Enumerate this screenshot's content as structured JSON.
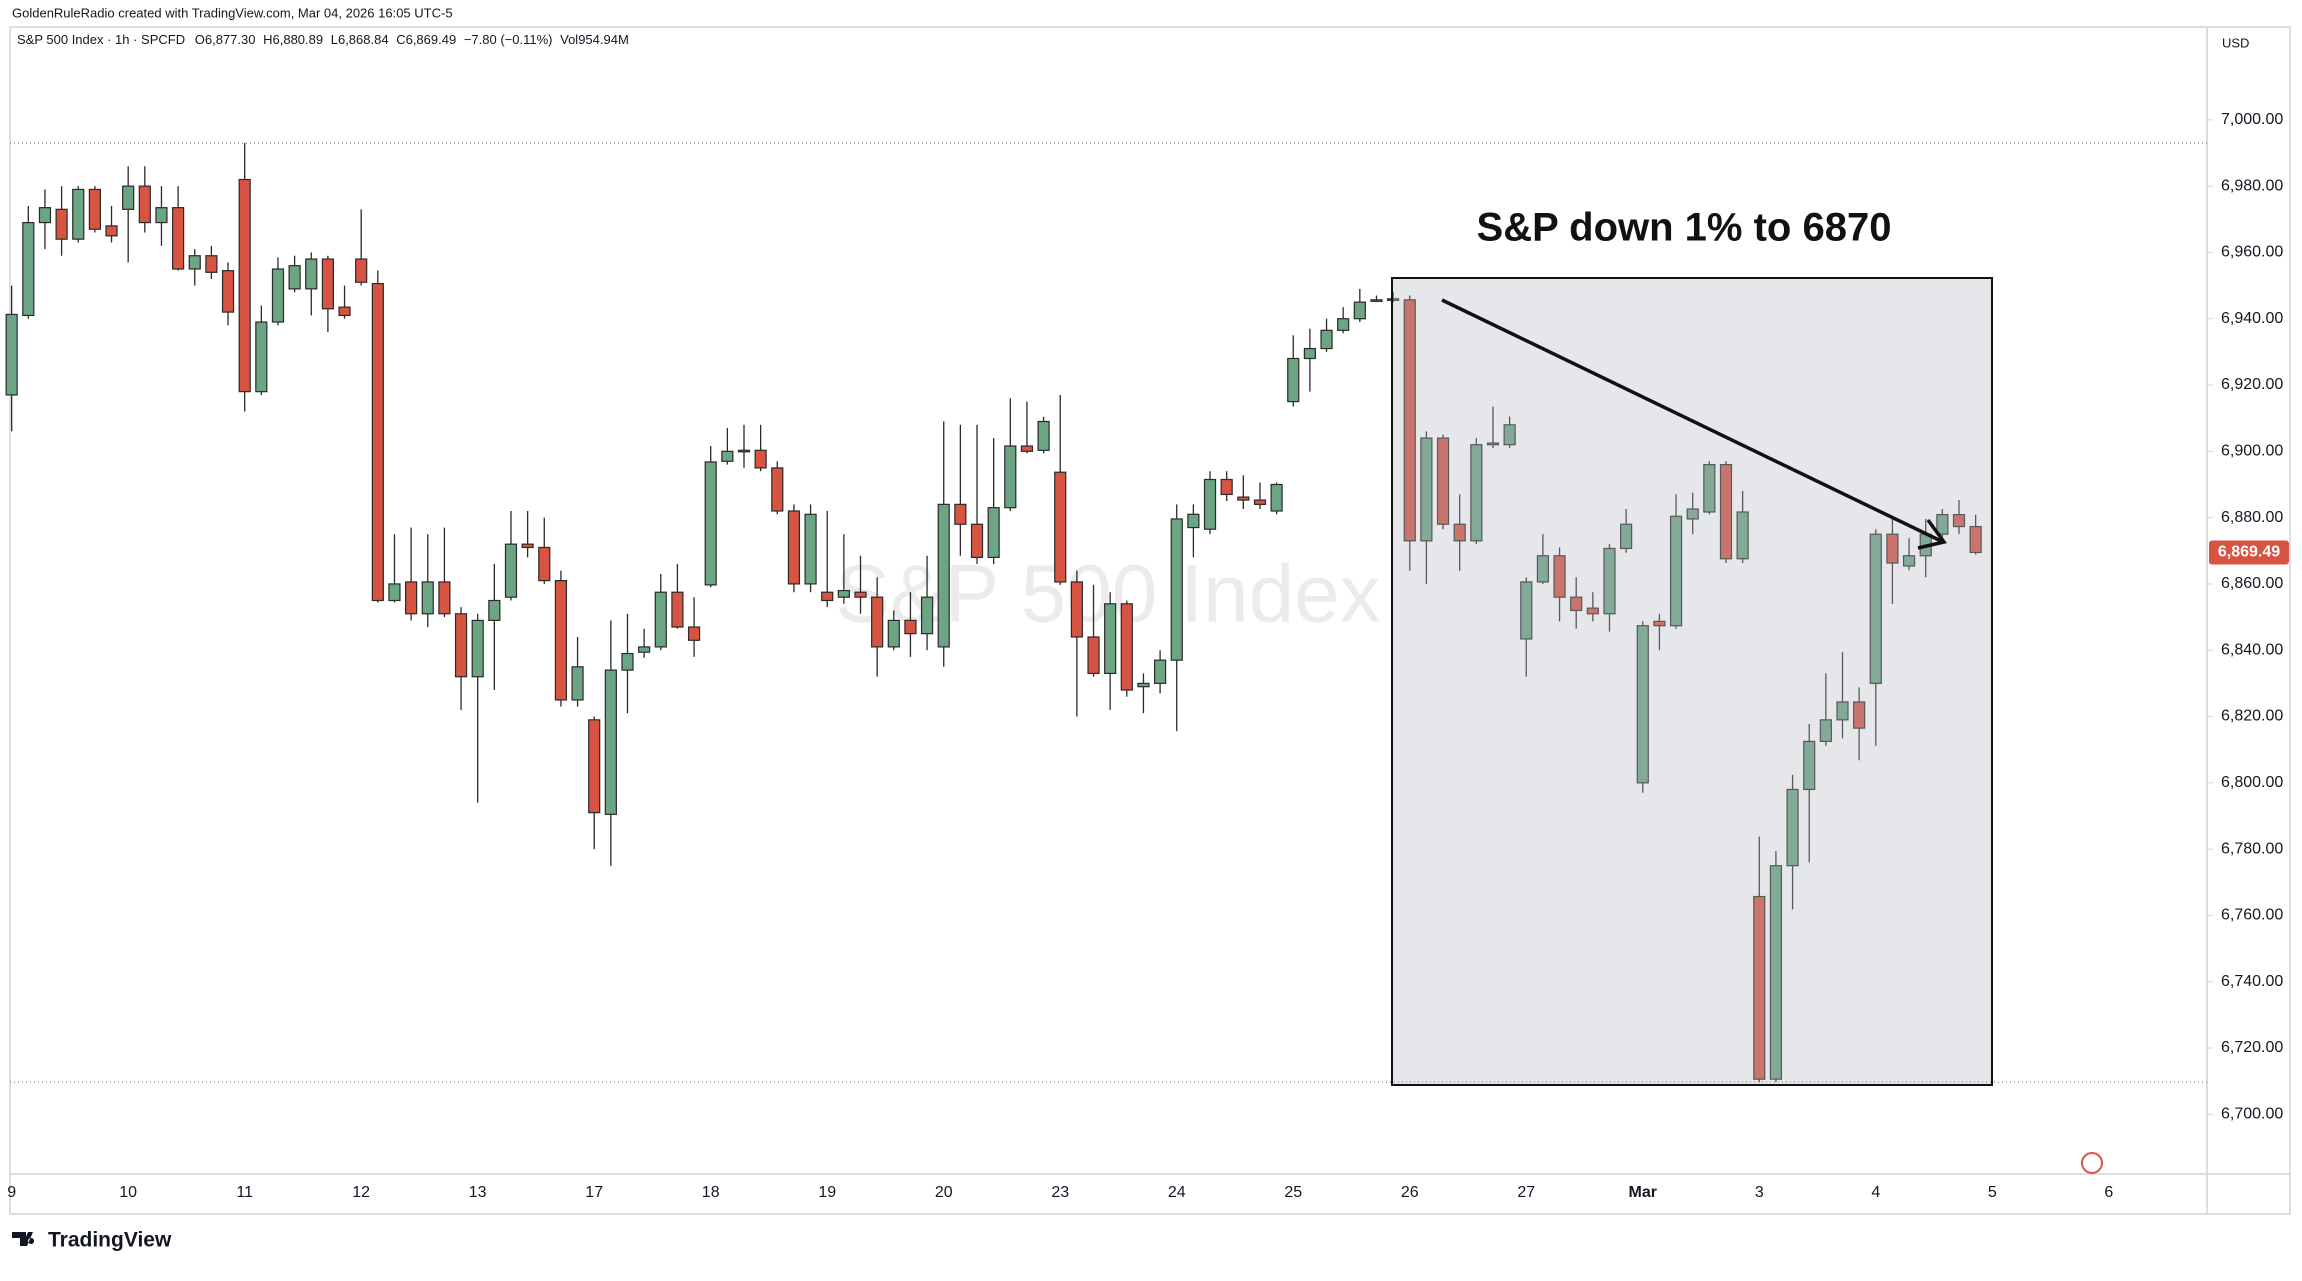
{
  "header": "GoldenRuleRadio created with TradingView.com, Mar 04, 2026 16:05 UTC-5",
  "legend": {
    "symbol": "S&P 500 Index · 1h · SPCFD",
    "ohlc": [
      {
        "label": "O",
        "value": "6,877.30"
      },
      {
        "label": "H",
        "value": "6,880.89"
      },
      {
        "label": "L",
        "value": "6,868.84"
      },
      {
        "label": "C",
        "value": "6,869.49"
      }
    ],
    "change": "−7.80 (−0.11%)",
    "volume": {
      "label": "Vol",
      "value": "954.94M"
    }
  },
  "currency": "USD",
  "watermark": "S&P 500 Index",
  "annotation": "S&P down 1% to 6870",
  "brand": "TradingView",
  "chart_data": {
    "type": "candlestick",
    "up_color": "#6ba583",
    "down_color": "#d75442",
    "outline_color": "#2a2a2a",
    "grid": false,
    "categories": [
      "9",
      null,
      null,
      null,
      null,
      null,
      null,
      "10",
      null,
      null,
      null,
      null,
      null,
      null,
      "11",
      null,
      null,
      null,
      null,
      null,
      null,
      "12",
      null,
      null,
      null,
      null,
      null,
      null,
      "13",
      null,
      null,
      null,
      null,
      null,
      null,
      "17",
      null,
      null,
      null,
      null,
      null,
      null,
      "18",
      null,
      null,
      null,
      null,
      null,
      null,
      "19",
      null,
      null,
      null,
      null,
      null,
      null,
      "20",
      null,
      null,
      null,
      null,
      null,
      null,
      "23",
      null,
      null,
      null,
      null,
      null,
      null,
      "24",
      null,
      null,
      null,
      null,
      null,
      null,
      "25",
      null,
      null,
      null,
      null,
      null,
      null,
      "26",
      null,
      null,
      null,
      null,
      null,
      null,
      "27",
      null,
      null,
      null,
      null,
      null,
      null,
      "Mar",
      null,
      null,
      null,
      null,
      null,
      null,
      "3",
      null,
      null,
      null,
      null,
      null,
      null,
      "4",
      null,
      null,
      null,
      null,
      null,
      null,
      "5",
      null,
      null,
      null,
      null,
      null,
      null,
      "6"
    ],
    "open": [
      6917,
      6941,
      6969,
      6973,
      6964,
      6979,
      6968,
      6973,
      6980,
      6969,
      6973.5,
      6955,
      6959,
      6954.5,
      6982,
      6918,
      6939,
      6949,
      6949,
      6958,
      6943.5,
      6958,
      6950.6,
      6855,
      6860.6,
      6851,
      6860.6,
      6851,
      6832,
      6849,
      6856,
      6872,
      6871,
      6861,
      6825,
      6819,
      6790.5,
      6834,
      6839.4,
      6841,
      6857.5,
      6847,
      6859.7,
      6897,
      6900.3,
      6900.3,
      6895,
      6882,
      6860,
      6857.5,
      6856,
      6857.5,
      6856,
      6841,
      6849,
      6845,
      6841,
      6884,
      6878,
      6868,
      6883,
      6901.6,
      6900.3,
      6893.7,
      6860.6,
      6844,
      6833,
      6854,
      6829,
      6830,
      6837,
      6877,
      6876.5,
      6891.5,
      6886.2,
      6885.3,
      6882,
      6915,
      6928,
      6931,
      6936.5,
      6940,
      6945.3,
      6945.7,
      6945.7,
      6873,
      6904,
      6878,
      6873,
      6902,
      6902,
      6843.4,
      6860.6,
      6868.5,
      6856,
      6852.7,
      6851,
      6870.7,
      6800,
      6848.7,
      6847.4,
      6879.6,
      6881.7,
      6896,
      6867.6,
      6765.7,
      6710.6,
      6775,
      6798,
      6812.5,
      6819,
      6824.4,
      6830,
      6875,
      6865.4,
      6868.5,
      6875,
      6880.9,
      6877.3,
      null,
      null,
      null,
      null,
      null,
      null,
      null,
      null
    ],
    "high": [
      6950,
      6974,
      6979,
      6980,
      6980,
      6980,
      6974,
      6986,
      6986,
      6980,
      6980,
      6961,
      6962,
      6957,
      6993,
      6944,
      6958.5,
      6959,
      6960,
      6959,
      6950,
      6973,
      6954.6,
      6875,
      6877,
      6875,
      6877,
      6853,
      6851,
      6866,
      6882,
      6882,
      6880,
      6864,
      6844,
      6820,
      6849,
      6851,
      6846.5,
      6863,
      6866,
      6856,
      6901.6,
      6907,
      6908,
      6908,
      6897,
      6884,
      6884,
      6882,
      6875,
      6868.5,
      6862,
      6852,
      6857.5,
      6868.5,
      6909,
      6908,
      6908,
      6904,
      6916,
      6915,
      6910.4,
      6917,
      6864,
      6859.7,
      6857.5,
      6855,
      6833,
      6840,
      6884,
      6884,
      6894,
      6894,
      6892.8,
      6890.6,
      6890.6,
      6935,
      6937,
      6940,
      6943.5,
      6949,
      6947,
      6948,
      6947,
      6906,
      6905,
      6887,
      6904,
      6913.5,
      6910.5,
      6862,
      6875,
      6871,
      6862,
      6857.5,
      6872,
      6882.6,
      6848.7,
      6851,
      6887,
      6887.5,
      6897,
      6897,
      6888,
      6783.8,
      6779.4,
      6802.4,
      6817.8,
      6833,
      6839.4,
      6828.8,
      6876.5,
      6879.6,
      6873.8,
      6879.6,
      6882.6,
      6885.3,
      6880.89,
      null,
      null,
      null,
      null,
      null,
      null,
      null,
      null
    ],
    "low": [
      6906,
      6940,
      6961,
      6959,
      6963,
      6966,
      6963,
      6957,
      6966,
      6962,
      6954.5,
      6950,
      6952,
      6938,
      6912,
      6917,
      6938,
      6948,
      6941,
      6936,
      6940,
      6950,
      6854.4,
      6854.4,
      6849,
      6847,
      6850,
      6822,
      6794,
      6828,
      6855,
      6868,
      6860,
      6823,
      6823,
      6780,
      6775,
      6821,
      6837.7,
      6840,
      6846.5,
      6838,
      6859,
      6896,
      6895,
      6894,
      6881,
      6857.5,
      6857.5,
      6853,
      6854,
      6851,
      6832,
      6840,
      6838,
      6840,
      6835,
      6868.5,
      6866,
      6866,
      6882,
      6899.4,
      6899.4,
      6859.7,
      6820,
      6832,
      6822,
      6826,
      6821,
      6827,
      6815.6,
      6868,
      6875,
      6885,
      6882.6,
      6882.6,
      6881,
      6913.5,
      6918,
      6930,
      6935.6,
      6939,
      6945,
      6945,
      6864,
      6860,
      6876.5,
      6864,
      6872,
      6901,
      6901,
      6832,
      6860,
      6848.7,
      6846.5,
      6848.7,
      6845.6,
      6869.4,
      6797,
      6840,
      6846.5,
      6875,
      6881,
      6866.3,
      6866.3,
      6709.7,
      6709.7,
      6761.8,
      6776,
      6811.2,
      6813.4,
      6806.8,
      6811.2,
      6854,
      6864.1,
      6862,
      6873.8,
      6875,
      6868.84,
      null,
      null,
      null,
      null,
      null,
      null,
      null,
      null
    ],
    "close": [
      6941.3,
      6969,
      6973.5,
      6964,
      6979,
      6967,
      6965,
      6980,
      6969,
      6973.5,
      6955,
      6959,
      6954,
      6942,
      6918,
      6939,
      6955,
      6956,
      6958,
      6943,
      6941,
      6951,
      6855,
      6860,
      6851,
      6860.6,
      6851,
      6832,
      6849,
      6855,
      6872,
      6871,
      6861,
      6825,
      6835,
      6791,
      6834,
      6839,
      6841,
      6857.5,
      6847,
      6843,
      6896.8,
      6900,
      6900,
      6895,
      6882,
      6860,
      6881,
      6855,
      6858,
      6856,
      6841,
      6849,
      6845,
      6856,
      6884,
      6878,
      6868,
      6883,
      6901.6,
      6900,
      6909,
      6860.6,
      6844,
      6833,
      6854,
      6828,
      6830,
      6837,
      6879.6,
      6881,
      6891.5,
      6887,
      6885.3,
      6884,
      6890,
      6928,
      6931,
      6936.5,
      6940,
      6945,
      6945.7,
      6946,
      6873,
      6904,
      6878,
      6873,
      6902,
      6902.5,
      6908,
      6860.6,
      6868.5,
      6856,
      6852,
      6851,
      6870.7,
      6878,
      6847.4,
      6847.4,
      6880.4,
      6882.6,
      6896,
      6867.6,
      6881.7,
      6710.6,
      6775,
      6798,
      6812.5,
      6819,
      6824.4,
      6816.5,
      6875,
      6866.3,
      6868.5,
      6875,
      6880.9,
      6877.3,
      6869.49,
      null,
      null,
      null,
      null,
      null,
      null,
      null,
      null
    ],
    "last_price": {
      "value": 6869.49,
      "label": "6,869.49"
    },
    "ylim": [
      6682,
      7028
    ],
    "yticks": [
      {
        "value": 6700,
        "label": "6,700.00"
      },
      {
        "value": 6720,
        "label": "6,720.00"
      },
      {
        "value": 6740,
        "label": "6,740.00"
      },
      {
        "value": 6760,
        "label": "6,760.00"
      },
      {
        "value": 6780,
        "label": "6,780.00"
      },
      {
        "value": 6800,
        "label": "6,800.00"
      },
      {
        "value": 6820,
        "label": "6,820.00"
      },
      {
        "value": 6840,
        "label": "6,840.00"
      },
      {
        "value": 6860,
        "label": "6,860.00"
      },
      {
        "value": 6880,
        "label": "6,880.00"
      },
      {
        "value": 6900,
        "label": "6,900.00"
      },
      {
        "value": 6920,
        "label": "6,920.00"
      },
      {
        "value": 6940,
        "label": "6,940.00"
      },
      {
        "value": 6960,
        "label": "6,960.00"
      },
      {
        "value": 6980,
        "label": "6,980.00"
      },
      {
        "value": 7000,
        "label": "7,000.00"
      }
    ]
  }
}
